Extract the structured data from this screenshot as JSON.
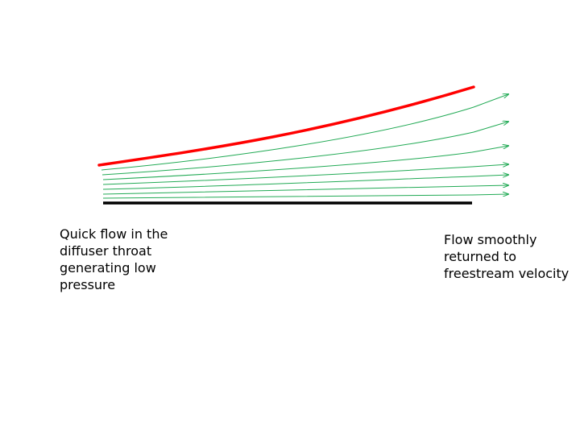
{
  "colors": {
    "background": "#ffffff",
    "diffuser_wall": "#ff0000",
    "ground_plane": "#000000",
    "streamlines": "#22aa55",
    "text": "#000000"
  },
  "captions": {
    "left": "Quick flow in the\ndiffuser throat\ngenerating low\npressure",
    "right": "Flow smoothly\nreturned to\nfreestream velocity"
  }
}
